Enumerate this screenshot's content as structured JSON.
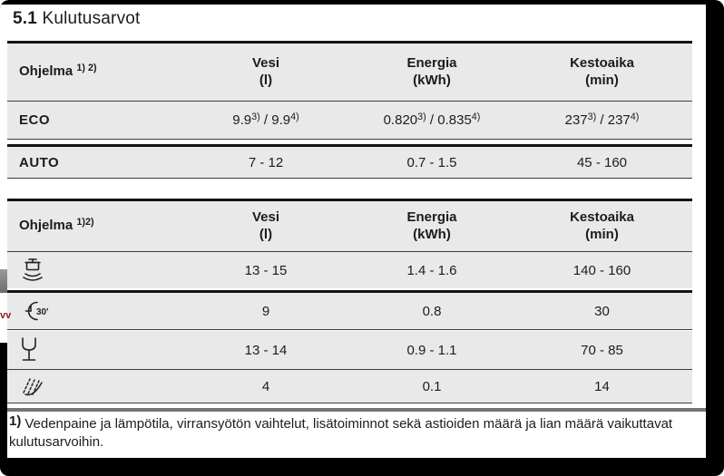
{
  "page": {
    "title_number": "5.1",
    "title_text": "Kulutusarvot"
  },
  "edge_artifacts": {
    "watermark_fragment": "vv"
  },
  "colors": {
    "row_bg": "#e9e9e9",
    "thick_line": "#141414",
    "thin_line": "#3d3d3d",
    "gray_rule": "#757575",
    "watermark_red": "#8c1f1f",
    "frame": "#000000"
  },
  "table1": {
    "header": {
      "program_parts": [
        {
          "t": "Ohjelma "
        },
        {
          "s": "1) 2)"
        }
      ],
      "water_l1": "Vesi",
      "water_l2": "(l)",
      "energy_l1": "Energia",
      "energy_l2": "(kWh)",
      "duration_l1": "Kestoaika",
      "duration_l2": "(min)"
    },
    "rows": [
      {
        "program": "ECO",
        "water_parts": [
          {
            "t": "9.9"
          },
          {
            "s": "3)"
          },
          {
            "t": " / 9.9"
          },
          {
            "s": "4)"
          }
        ],
        "energy_parts": [
          {
            "t": "0.820"
          },
          {
            "s": "3)"
          },
          {
            "t": " / 0.835"
          },
          {
            "s": "4)"
          }
        ],
        "duration_parts": [
          {
            "t": "237"
          },
          {
            "s": "3)"
          },
          {
            "t": " / 237"
          },
          {
            "s": "4)"
          }
        ]
      },
      {
        "program": "AUTO",
        "water": "7 - 12",
        "energy": "0.7 - 1.5",
        "duration": "45 - 160"
      }
    ]
  },
  "table2": {
    "header": {
      "program_parts": [
        {
          "t": "Ohjelma "
        },
        {
          "s": "1)2)"
        }
      ],
      "water_l1": "Vesi",
      "water_l2": "(l)",
      "energy_l1": "Energia",
      "energy_l2": "(kWh)",
      "duration_l1": "Kestoaika",
      "duration_l2": "(min)"
    },
    "rows": [
      {
        "icon": "pots-program-icon",
        "water": "13 - 15",
        "energy": "1.4 - 1.6",
        "duration": "140 - 160"
      },
      {
        "icon": "quick-30min-program-icon",
        "icon_label": "30'",
        "water": "9",
        "energy": "0.8",
        "duration": "30"
      },
      {
        "icon": "glass-program-icon",
        "water": "13 - 14",
        "energy": "0.9 - 1.1",
        "duration": "70 - 85"
      },
      {
        "icon": "rinse-program-icon",
        "water": "4",
        "energy": "0.1",
        "duration": "14"
      }
    ]
  },
  "footnote": {
    "marker": "1)",
    "text": "Vedenpaine ja lämpötila, virransyötön vaihtelut, lisätoiminnot sekä astioiden määrä ja lian määrä vaikuttavat kulutusarvoihin."
  }
}
